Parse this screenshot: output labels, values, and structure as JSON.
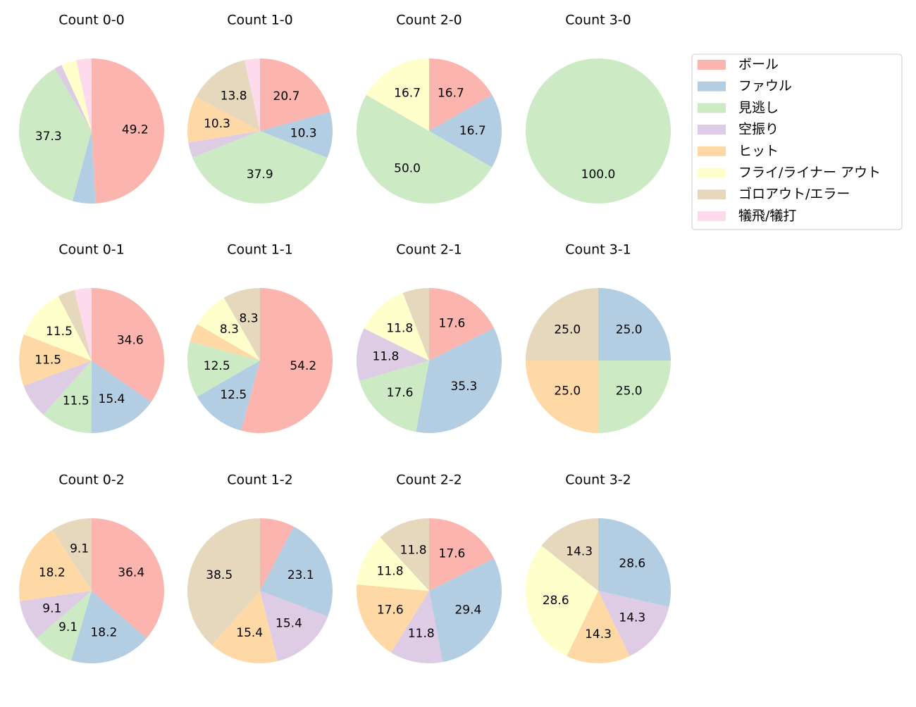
{
  "chart_data": [
    {
      "type": "pie",
      "title": "Count 0-0",
      "categories": [
        "ボール",
        "ファウル",
        "見逃し",
        "空振り",
        "フライ/ライナー アウト",
        "犠飛/犠打"
      ],
      "values": [
        49.2,
        5.1,
        37.3,
        1.7,
        3.4,
        3.4
      ],
      "value_labels": [
        "49.2",
        null,
        "37.3",
        null,
        null,
        null
      ]
    },
    {
      "type": "pie",
      "title": "Count 1-0",
      "categories": [
        "ボール",
        "ファウル",
        "見逃し",
        "空振り",
        "ヒット",
        "ゴロアウト/エラー",
        "犠飛/犠打"
      ],
      "values": [
        20.7,
        10.3,
        37.9,
        3.4,
        10.3,
        13.8,
        3.4
      ],
      "value_labels": [
        "20.7",
        "10.3",
        "37.9",
        null,
        "10.3",
        "13.8",
        null
      ]
    },
    {
      "type": "pie",
      "title": "Count 2-0",
      "categories": [
        "ボール",
        "ファウル",
        "見逃し",
        "フライ/ライナー アウト"
      ],
      "values": [
        16.7,
        16.7,
        50.0,
        16.7
      ],
      "value_labels": [
        "16.7",
        "16.7",
        "50.0",
        "16.7"
      ]
    },
    {
      "type": "pie",
      "title": "Count 3-0",
      "categories": [
        "見逃し"
      ],
      "values": [
        100.0
      ],
      "value_labels": [
        "100.0"
      ]
    },
    {
      "type": "pie",
      "title": "Count 0-1",
      "categories": [
        "ボール",
        "ファウル",
        "見逃し",
        "空振り",
        "ヒット",
        "フライ/ライナー アウト",
        "ゴロアウト/エラー",
        "犠飛/犠打"
      ],
      "values": [
        34.6,
        15.4,
        11.5,
        7.7,
        11.5,
        11.5,
        3.8,
        3.8
      ],
      "value_labels": [
        "34.6",
        "15.4",
        "11.5",
        null,
        "11.5",
        "11.5",
        null,
        null
      ]
    },
    {
      "type": "pie",
      "title": "Count 1-1",
      "categories": [
        "ボール",
        "ファウル",
        "見逃し",
        "ヒット",
        "フライ/ライナー アウト",
        "ゴロアウト/エラー"
      ],
      "values": [
        54.2,
        12.5,
        12.5,
        4.2,
        8.3,
        8.3
      ],
      "value_labels": [
        "54.2",
        "12.5",
        "12.5",
        null,
        "8.3",
        "8.3"
      ]
    },
    {
      "type": "pie",
      "title": "Count 2-1",
      "categories": [
        "ボール",
        "ファウル",
        "見逃し",
        "空振り",
        "フライ/ライナー アウト",
        "ゴロアウト/エラー"
      ],
      "values": [
        17.6,
        35.3,
        17.6,
        11.8,
        11.8,
        5.9
      ],
      "value_labels": [
        "17.6",
        "35.3",
        "17.6",
        "11.8",
        "11.8",
        null
      ]
    },
    {
      "type": "pie",
      "title": "Count 3-1",
      "categories": [
        "ファウル",
        "見逃し",
        "ヒット",
        "ゴロアウト/エラー"
      ],
      "values": [
        25.0,
        25.0,
        25.0,
        25.0
      ],
      "value_labels": [
        "25.0",
        "25.0",
        "25.0",
        "25.0"
      ]
    },
    {
      "type": "pie",
      "title": "Count 0-2",
      "categories": [
        "ボール",
        "ファウル",
        "見逃し",
        "空振り",
        "ヒット",
        "ゴロアウト/エラー"
      ],
      "values": [
        36.4,
        18.2,
        9.1,
        9.1,
        18.2,
        9.1
      ],
      "value_labels": [
        "36.4",
        "18.2",
        "9.1",
        "9.1",
        "18.2",
        "9.1"
      ]
    },
    {
      "type": "pie",
      "title": "Count 1-2",
      "categories": [
        "ボール",
        "ファウル",
        "空振り",
        "ヒット",
        "ゴロアウト/エラー"
      ],
      "values": [
        7.7,
        23.1,
        15.4,
        15.4,
        38.5
      ],
      "value_labels": [
        null,
        "23.1",
        "15.4",
        "15.4",
        "38.5"
      ]
    },
    {
      "type": "pie",
      "title": "Count 2-2",
      "categories": [
        "ボール",
        "ファウル",
        "空振り",
        "ヒット",
        "フライ/ライナー アウト",
        "ゴロアウト/エラー"
      ],
      "values": [
        17.6,
        29.4,
        11.8,
        17.6,
        11.8,
        11.8
      ],
      "value_labels": [
        "17.6",
        "29.4",
        "11.8",
        "17.6",
        "11.8",
        "11.8"
      ]
    },
    {
      "type": "pie",
      "title": "Count 3-2",
      "categories": [
        "ファウル",
        "空振り",
        "ヒット",
        "フライ/ライナー アウト",
        "ゴロアウト/エラー"
      ],
      "values": [
        28.6,
        14.3,
        14.3,
        28.6,
        14.3
      ],
      "value_labels": [
        "28.6",
        "14.3",
        "14.3",
        "28.6",
        "14.3"
      ]
    }
  ],
  "legend": {
    "labels": [
      "ボール",
      "ファウル",
      "見逃し",
      "空振り",
      "ヒット",
      "フライ/ライナー アウト",
      "ゴロアウト/エラー",
      "犠飛/犠打"
    ],
    "colors": [
      "#fbb4ae",
      "#b3cde3",
      "#ccebc5",
      "#decbe4",
      "#fed9a6",
      "#ffffcc",
      "#e5d8bd",
      "#fddaec"
    ],
    "position": "upper right"
  }
}
